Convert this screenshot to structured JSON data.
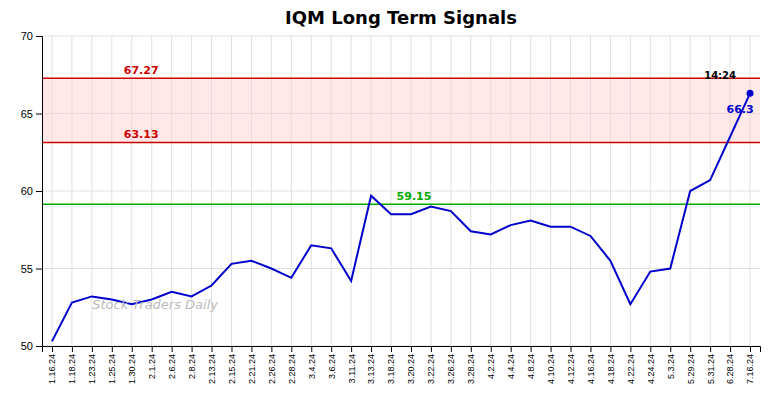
{
  "chart_data": {
    "type": "line",
    "title": "IQM Long Term Signals",
    "categories": [
      "1.16.24",
      "1.18.24",
      "1.23.24",
      "1.25.24",
      "1.30.24",
      "2.1.24",
      "2.6.24",
      "2.8.24",
      "2.13.24",
      "2.15.24",
      "2.21.24",
      "2.26.24",
      "2.28.24",
      "3.4.24",
      "3.6.24",
      "3.11.24",
      "3.13.24",
      "3.18.24",
      "3.20.24",
      "3.22.24",
      "3.26.24",
      "3.28.24",
      "4.2.24",
      "4.4.24",
      "4.8.24",
      "4.10.24",
      "4.12.24",
      "4.16.24",
      "4.18.24",
      "4.22.24",
      "4.24.24",
      "5.3.24",
      "5.29.24",
      "5.31.24",
      "6.28.24",
      "7.16.24"
    ],
    "values": [
      50.3,
      52.8,
      53.2,
      53.0,
      52.7,
      53.0,
      53.5,
      53.2,
      53.9,
      55.3,
      55.5,
      55.0,
      54.4,
      56.5,
      56.3,
      54.2,
      59.7,
      58.5,
      58.5,
      59.0,
      58.7,
      57.4,
      57.2,
      57.8,
      58.1,
      57.7,
      57.7,
      57.1,
      55.5,
      52.7,
      54.8,
      55.0,
      60.0,
      60.7,
      63.5,
      66.3
    ],
    "color": "#0000cc",
    "ylim": [
      50,
      70
    ],
    "yticks": [
      50,
      55,
      60,
      65,
      70
    ],
    "grid": true,
    "reference_lines": [
      {
        "value": 67.27,
        "label": "67.27",
        "color": "#cc0000"
      },
      {
        "value": 63.13,
        "label": "63.13",
        "color": "#cc0000"
      },
      {
        "value": 59.15,
        "label": "59.15",
        "color": "#00aa00"
      }
    ],
    "ranges": [
      {
        "values": [
          63.13,
          67.27
        ],
        "color": "#ffcccc"
      }
    ],
    "annotations": [
      {
        "text": "14:24",
        "color": "#000000"
      },
      {
        "text": "66.3",
        "color": "#0000cc"
      },
      {
        "text": "Stock Traders Daily",
        "color": "#bbbbbb"
      }
    ]
  }
}
